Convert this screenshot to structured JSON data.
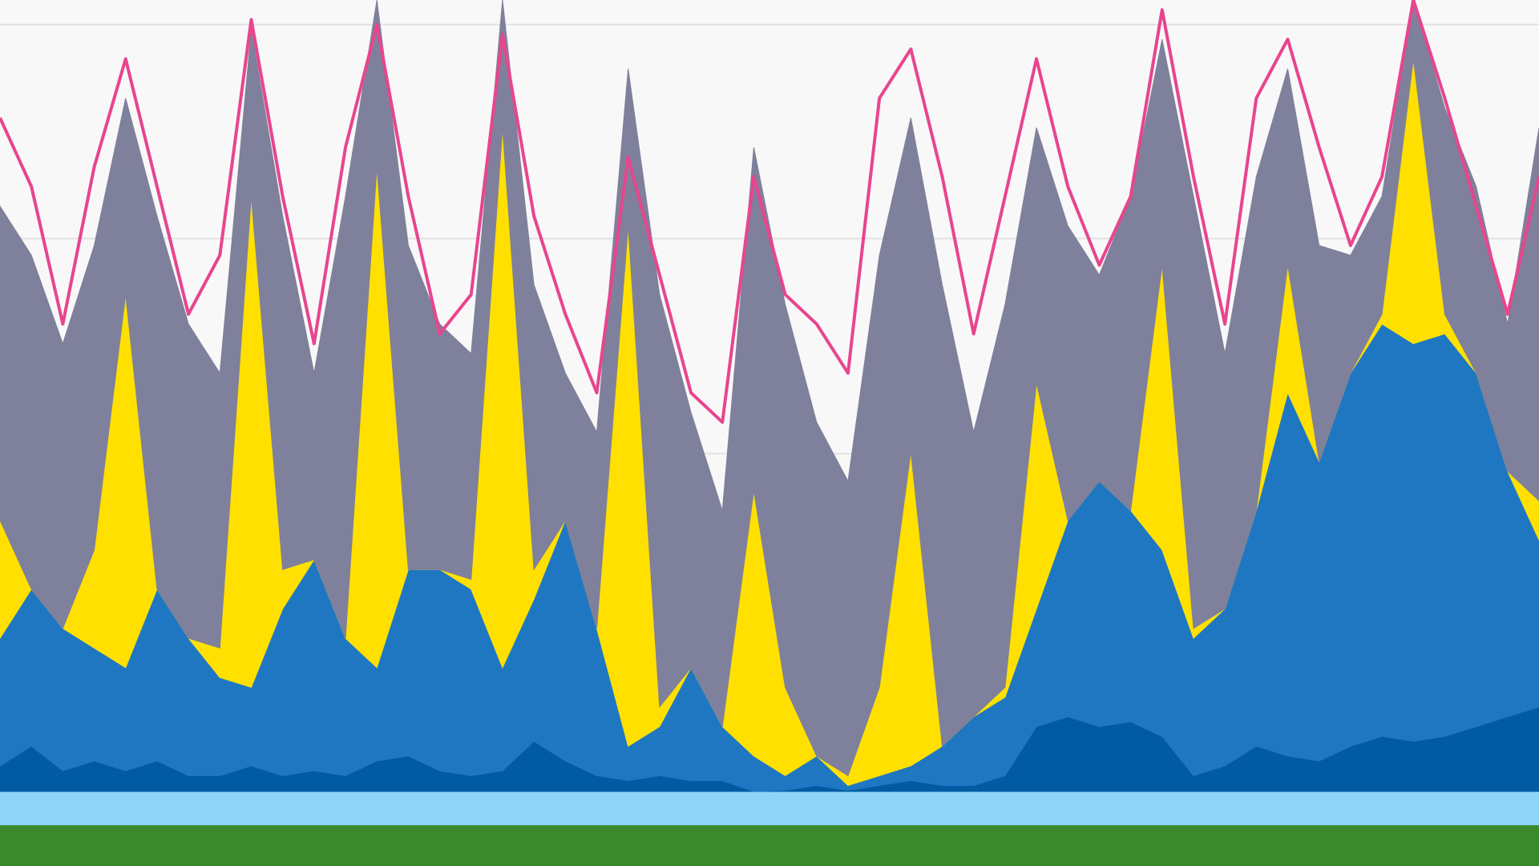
{
  "chart_data": {
    "type": "stacked_area",
    "x": [
      0,
      1,
      2,
      3,
      4,
      5,
      6,
      7,
      8,
      9,
      10,
      11,
      12,
      13,
      14,
      15,
      16,
      17,
      18,
      19,
      20,
      21,
      22,
      23,
      24,
      25,
      26,
      27,
      28,
      29,
      30,
      31,
      32,
      33,
      34,
      35,
      36,
      37,
      38,
      39,
      40,
      41,
      42,
      43,
      44,
      45,
      46,
      47,
      48,
      49
    ],
    "xlim": [
      0,
      49
    ],
    "ylim": [
      0,
      88.2
    ],
    "yticks": [
      20.2,
      42,
      63.9,
      85.7
    ],
    "grid": true,
    "series": [
      {
        "color": "#3a8a2c",
        "values": [
          4.2,
          4.2,
          4.2,
          4.2,
          4.2,
          4.2,
          4.2,
          4.2,
          4.2,
          4.2,
          4.2,
          4.2,
          4.2,
          4.2,
          4.2,
          4.2,
          4.2,
          4.2,
          4.2,
          4.2,
          4.2,
          4.2,
          4.2,
          4.2,
          4.2,
          4.2,
          4.2,
          4.2,
          4.2,
          4.2,
          4.2,
          4.2,
          4.2,
          4.2,
          4.2,
          4.2,
          4.2,
          4.2,
          4.2,
          4.2,
          4.2,
          4.2,
          4.2,
          4.2,
          4.2,
          4.2,
          4.2,
          4.2,
          4.2,
          4.2
        ]
      },
      {
        "color": "#8fd3f7",
        "values": [
          3.4,
          3.4,
          3.4,
          3.4,
          3.4,
          3.4,
          3.4,
          3.4,
          3.4,
          3.4,
          3.4,
          3.4,
          3.4,
          3.4,
          3.4,
          3.4,
          3.4,
          3.4,
          3.4,
          3.4,
          3.4,
          3.4,
          3.4,
          3.4,
          3.4,
          3.4,
          3.4,
          3.4,
          3.4,
          3.4,
          3.4,
          3.4,
          3.4,
          3.4,
          3.4,
          3.4,
          3.4,
          3.4,
          3.4,
          3.4,
          3.4,
          3.4,
          3.4,
          3.4,
          3.4,
          3.4,
          3.4,
          3.4,
          3.4,
          3.4
        ]
      },
      {
        "color": "#005ba3",
        "values": [
          2.6,
          4.6,
          2.1,
          3.1,
          2.1,
          3.1,
          1.6,
          1.6,
          2.6,
          1.6,
          2.1,
          1.6,
          3.1,
          3.6,
          2.1,
          1.6,
          2.1,
          5.1,
          3.1,
          1.6,
          1.1,
          1.6,
          1.1,
          1.1,
          0,
          0.1,
          0.6,
          0.1,
          0.6,
          1.1,
          0.6,
          0.6,
          1.6,
          6.6,
          7.6,
          6.6,
          7.1,
          5.6,
          1.6,
          2.6,
          4.6,
          3.6,
          3.1,
          4.6,
          5.6,
          5.1,
          5.6,
          6.6,
          7.6,
          8.6
        ]
      },
      {
        "color": "#1f77c2",
        "values": [
          13,
          16,
          14.5,
          11.5,
          10.5,
          17.5,
          14,
          10,
          8,
          17,
          21.5,
          14,
          9.5,
          19,
          20.5,
          19,
          10.5,
          14.5,
          24.5,
          15,
          3.5,
          5,
          11.5,
          5.5,
          3.6,
          1.5,
          3,
          0.5,
          1,
          1.5,
          4,
          7,
          8,
          12,
          20,
          25,
          21.5,
          19,
          14,
          16,
          24,
          37,
          30.5,
          38,
          42,
          40.5,
          41,
          36,
          25,
          17
        ]
      },
      {
        "color": "#ffe000",
        "values": [
          12,
          0,
          0,
          10,
          38,
          0,
          0,
          3,
          50,
          4,
          0,
          0,
          51,
          0,
          0,
          1,
          55,
          3,
          0,
          0,
          53,
          2,
          0,
          0,
          27,
          9,
          0,
          1,
          9,
          32,
          0,
          0,
          1,
          23,
          0,
          0,
          0,
          29,
          1,
          0,
          0,
          13,
          0,
          0,
          1,
          29,
          2,
          0,
          0,
          4
        ]
      },
      {
        "color": "#7f809b",
        "values": [
          32,
          34,
          29,
          31,
          20,
          38,
          32,
          28,
          17,
          36,
          19,
          45,
          17,
          33,
          25,
          23,
          13,
          29,
          15,
          20,
          16,
          42,
          26,
          22,
          35,
          39,
          34,
          30,
          44,
          34,
          47,
          29,
          39,
          26,
          30,
          21,
          32,
          23,
          44,
          26,
          34,
          20,
          22,
          12,
          12,
          6,
          21,
          19,
          15,
          38
        ]
      },
      {
        "type": "line",
        "color": "#e8458e",
        "values": [
          76.2,
          69.2,
          55.2,
          71.2,
          82.2,
          69.2,
          56.2,
          62.2,
          86.2,
          68.2,
          53.2,
          73.2,
          85.7,
          68.2,
          54.2,
          58.2,
          84.7,
          66.2,
          56.2,
          48.2,
          72.2,
          60.2,
          48.2,
          45.2,
          70.2,
          58.2,
          55.2,
          50.2,
          78.2,
          83.2,
          70.2,
          54.2,
          68.2,
          82.2,
          69.2,
          61.2,
          68.2,
          87.2,
          70.2,
          55.2,
          78.2,
          84.2,
          73.2,
          63.2,
          70.2,
          88.2,
          78.2,
          67.2,
          56.2,
          70.2
        ]
      }
    ]
  }
}
